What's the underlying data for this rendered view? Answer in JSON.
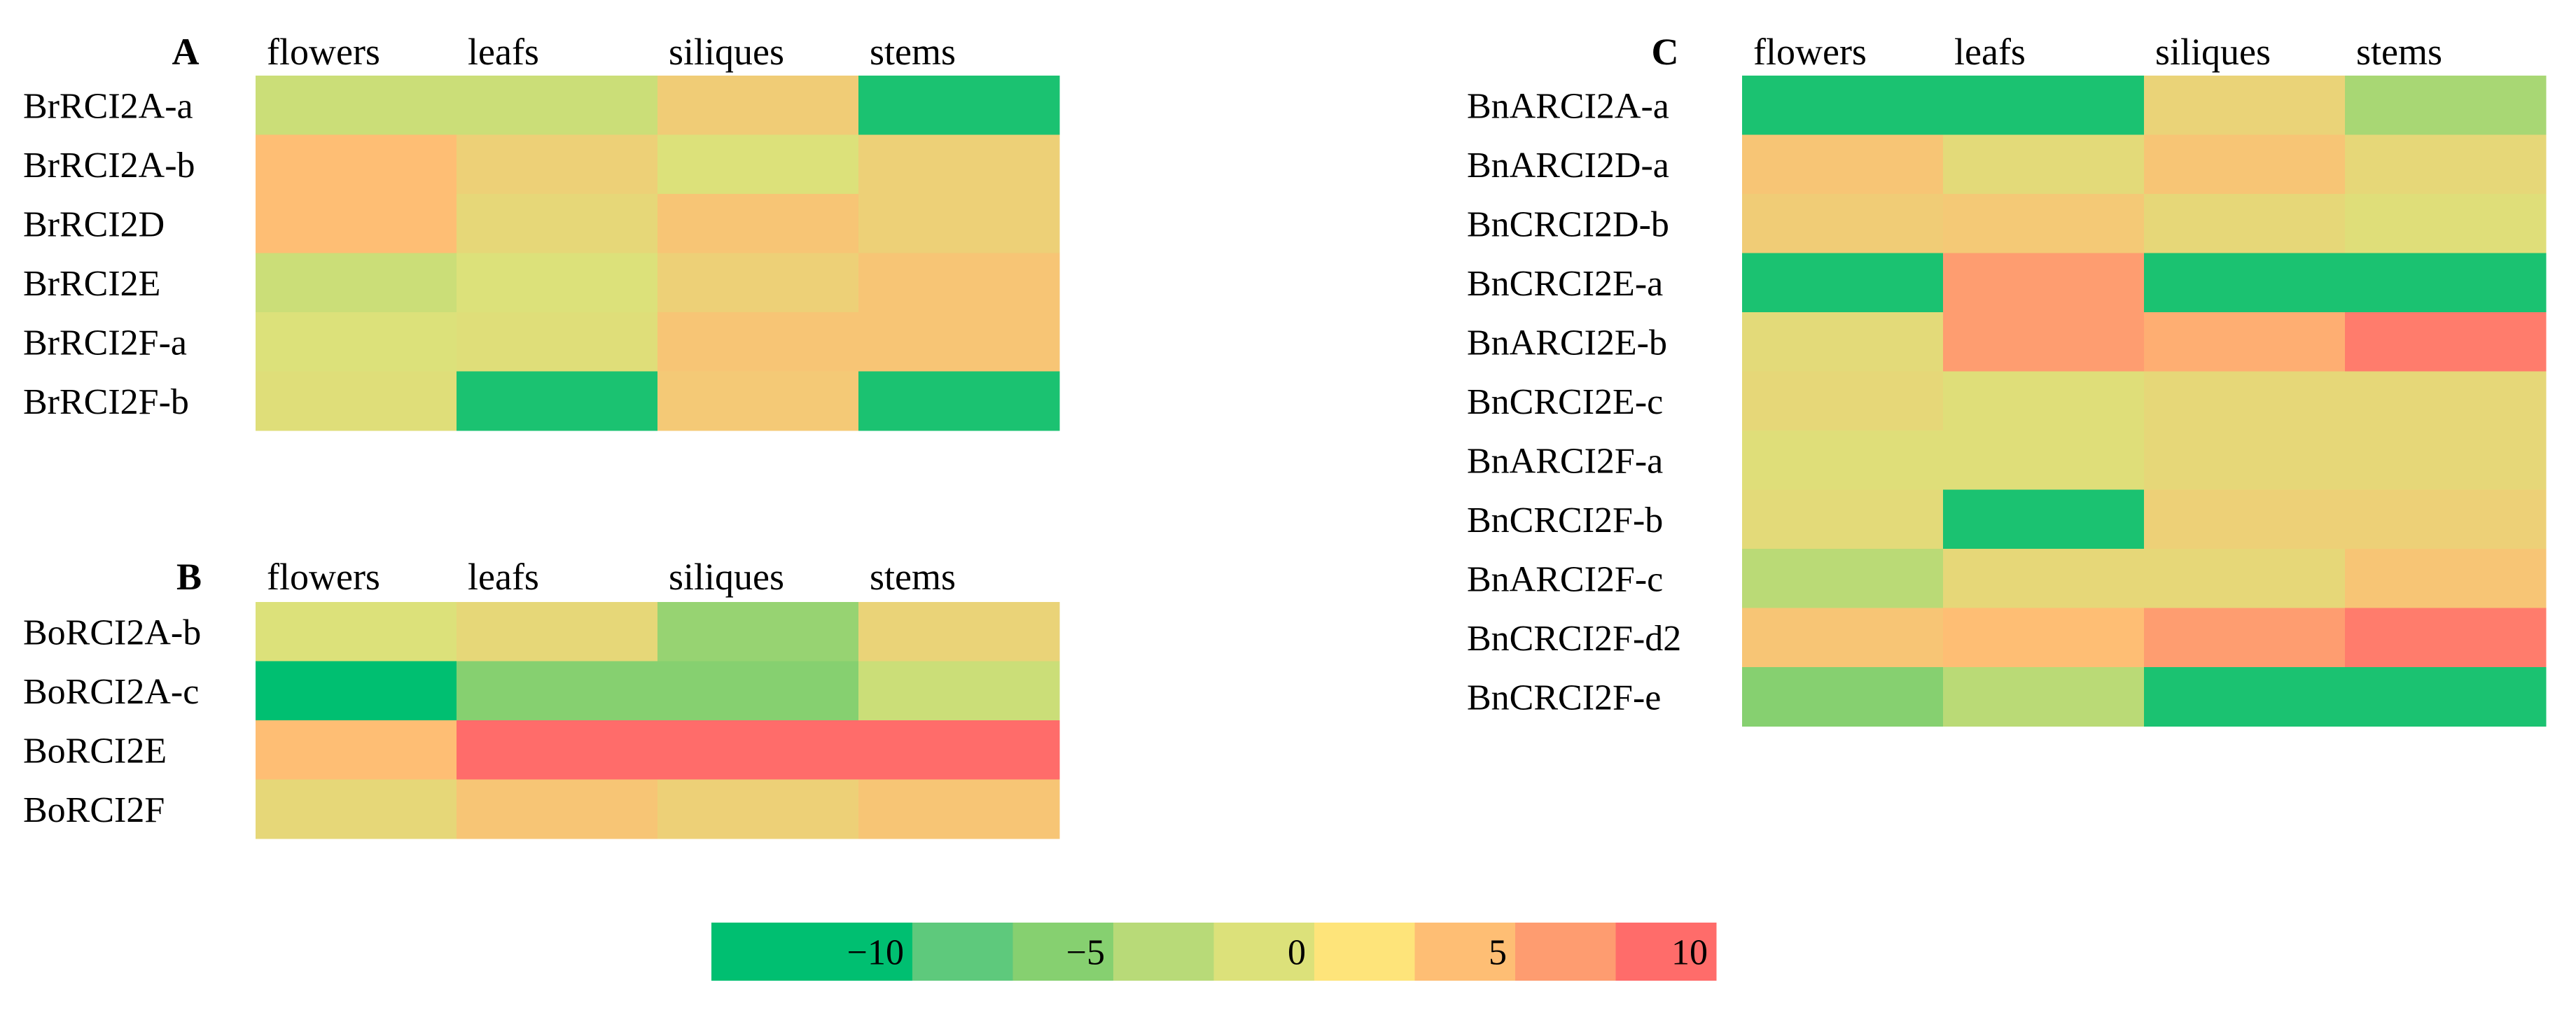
{
  "chart_data": [
    {
      "type": "heatmap",
      "panel": "A",
      "columns": [
        "flowers",
        "leafs",
        "siliques",
        "stems"
      ],
      "rows": [
        "BrRCI2A-a",
        "BrRCI2A-b",
        "BrRCI2D",
        "BrRCI2E",
        "BrRCI2F-a",
        "BrRCI2F-b"
      ],
      "values": [
        [
          -1,
          -1,
          3,
          -9
        ],
        [
          5,
          2.5,
          0,
          2.5
        ],
        [
          5,
          1.5,
          4,
          2.5
        ],
        [
          -1,
          0,
          2.5,
          4
        ],
        [
          0,
          0.5,
          4,
          4
        ],
        [
          0.5,
          -9,
          3.5,
          -9
        ]
      ]
    },
    {
      "type": "heatmap",
      "panel": "B",
      "columns": [
        "flowers",
        "leafs",
        "siliques",
        "stems"
      ],
      "rows": [
        "BoRCI2A-b",
        "BoRCI2A-c",
        "BoRCI2E",
        "BoRCI2F"
      ],
      "values": [
        [
          0,
          1.5,
          -4,
          2
        ],
        [
          -10,
          -5,
          -5,
          -1
        ],
        [
          5,
          10,
          10,
          10
        ],
        [
          1.5,
          4,
          2.5,
          4
        ]
      ]
    },
    {
      "type": "heatmap",
      "panel": "C",
      "columns": [
        "flowers",
        "leafs",
        "siliques",
        "stems"
      ],
      "rows": [
        "BnARCI2A-a",
        "BnARCI2D-a",
        "BnCRCI2D-b",
        "BnCRCI2E-a",
        "BnARCI2E-b",
        "BnCRCI2E-c",
        "BnARCI2F-a",
        "BnCRCI2F-b",
        "BnARCI2F-c",
        "BnCRCI2F-d2",
        "BnCRCI2F-e"
      ],
      "values": [
        [
          -9,
          -9,
          2,
          -3
        ],
        [
          4,
          1,
          4,
          1.5
        ],
        [
          3,
          3.5,
          1.5,
          0.5
        ],
        [
          -9,
          7,
          -9,
          -9
        ],
        [
          1,
          7,
          6,
          9
        ],
        [
          1.5,
          0.5,
          1.5,
          1.5
        ],
        [
          0.5,
          0.5,
          1.5,
          1.5
        ],
        [
          1,
          -9,
          2.5,
          2.5
        ],
        [
          -2,
          1.5,
          1.5,
          4
        ],
        [
          4,
          5,
          7,
          9
        ],
        [
          -5,
          -2,
          -9,
          -9
        ]
      ]
    }
  ],
  "colorscale": {
    "ticks": [
      -10,
      -5,
      0,
      5,
      10
    ],
    "tick_labels": [
      "−10",
      "−5",
      "0",
      "5",
      "10"
    ],
    "colors": [
      "#00BF71",
      "#86D070",
      "#DCE17A",
      "#FEBE74",
      "#FF6C6A"
    ],
    "mid_colors": [
      "#5EC97C",
      "#B8DA78",
      "#FEE47A",
      "#FE9C70"
    ]
  }
}
